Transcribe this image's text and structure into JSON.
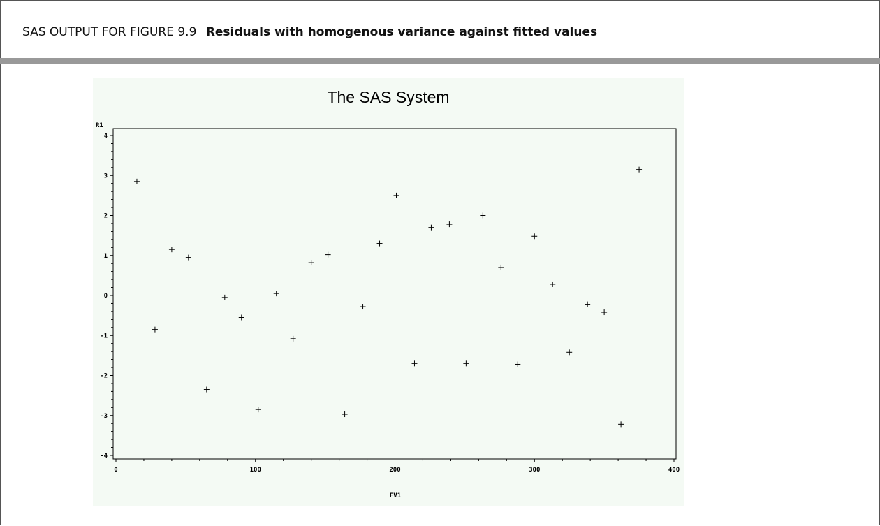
{
  "header": {
    "prefix": "SAS OUTPUT FOR FIGURE 9.9",
    "title": "Residuals with homogenous variance against fitted values"
  },
  "chart_data": {
    "type": "scatter",
    "title": "The SAS System",
    "xlabel": "FV1",
    "ylabel": "R1",
    "xlim": [
      0,
      400
    ],
    "ylim": [
      -4,
      4
    ],
    "xticks": [
      "0",
      "100",
      "200",
      "300",
      "400"
    ],
    "yticks": [
      "4",
      "3",
      "2",
      "1",
      "0",
      "-1",
      "-2",
      "-3",
      "-4"
    ],
    "marker": "+",
    "grid": false,
    "x": [
      15,
      28,
      40,
      52,
      65,
      78,
      90,
      102,
      115,
      127,
      140,
      152,
      164,
      177,
      189,
      201,
      214,
      226,
      239,
      251,
      263,
      276,
      288,
      300,
      313,
      325,
      338,
      350,
      362,
      375
    ],
    "y": [
      2.85,
      -0.85,
      1.15,
      0.95,
      -2.35,
      -0.05,
      -0.55,
      -2.85,
      0.05,
      -1.08,
      0.82,
      1.02,
      -2.97,
      -0.28,
      1.3,
      2.5,
      -1.7,
      1.7,
      1.78,
      -1.7,
      2.0,
      0.7,
      -1.72,
      1.48,
      0.28,
      -1.42,
      -0.22,
      -0.42,
      -3.22,
      3.15
    ]
  }
}
